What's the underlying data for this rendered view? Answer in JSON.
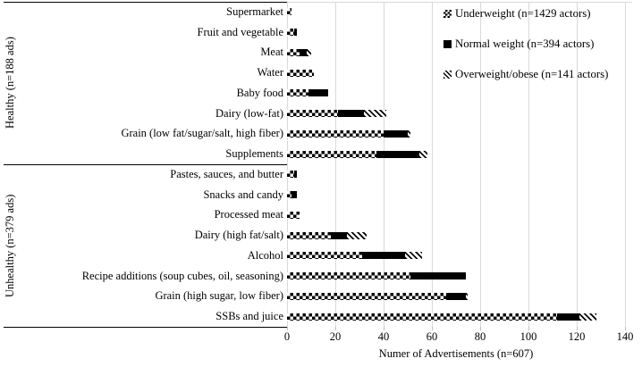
{
  "figure": {
    "background_color": "#ffffff",
    "gridline_color": "#d9d9d9",
    "bar_color": "#000000"
  },
  "chart_data": {
    "type": "bar",
    "orientation": "horizontal",
    "stacked": true,
    "title": "",
    "xlabel": "Numer of Advertisements (n=607)",
    "ylabel": "",
    "xlim": [
      0,
      140
    ],
    "xticks": [
      0,
      20,
      40,
      60,
      80,
      100,
      120,
      140
    ],
    "grid": "vertical",
    "legend_position": "top-right",
    "groups": [
      {
        "label": "Healthy (n=188 ads)",
        "categories": [
          "Supermarket",
          "Fruit and vegetable",
          "Meat",
          "Water",
          "Baby food",
          "Dairy (low-fat)",
          "Grain (low fat/sugar/salt, high fiber)",
          "Supplements"
        ]
      },
      {
        "label": "Unhealthy (n=379 ads)",
        "categories": [
          "Pastes, sauces, and butter",
          "Snacks and candy",
          "Processed meat",
          "Dairy (high fat/salt)",
          "Alcohol",
          "Recipe additions (soup cubes, oil, seasoning)",
          "Grain (high sugar, low fiber)",
          "SSBs and juice"
        ]
      }
    ],
    "series": [
      {
        "name": "Underweight (n=1429 actors)",
        "pattern": "checkerboard",
        "values": [
          2,
          3,
          5,
          11,
          9,
          21,
          40,
          37,
          3,
          2,
          5,
          18,
          31,
          51,
          66,
          112
        ]
      },
      {
        "name": "Normal weight (n=394 actors)",
        "pattern": "solid",
        "values": [
          0,
          1,
          3,
          0,
          8,
          11,
          10,
          18,
          1,
          2,
          0,
          7,
          18,
          23,
          8,
          9
        ]
      },
      {
        "name": "Overweight/obese (n=141 actors)",
        "pattern": "diagonal-stripes",
        "values": [
          0,
          0,
          2,
          0,
          0,
          9,
          1,
          3,
          0,
          0,
          0,
          8,
          7,
          0,
          1,
          7
        ]
      }
    ]
  }
}
